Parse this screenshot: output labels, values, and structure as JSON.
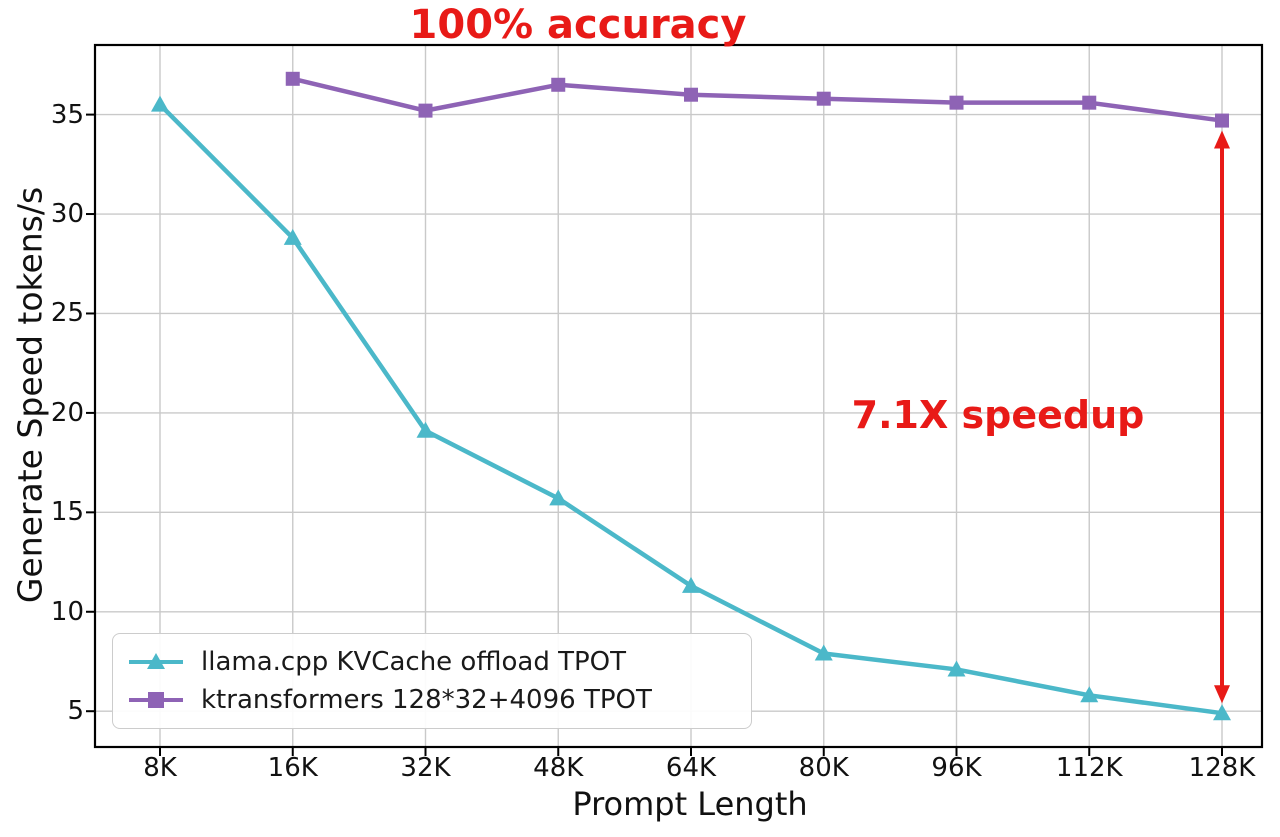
{
  "annotations": {
    "accuracy": "100% accuracy",
    "speedup": "7.1X speedup",
    "annotation_color": "#e81a17"
  },
  "chart_data": {
    "type": "line",
    "title": "",
    "xlabel": "Prompt Length",
    "ylabel": "Generate Speed tokens/s",
    "categories": [
      "8K",
      "16K",
      "32K",
      "48K",
      "64K",
      "80K",
      "96K",
      "112K",
      "128K"
    ],
    "yticks": [
      5,
      10,
      15,
      20,
      25,
      30,
      35
    ],
    "ylim": [
      3.2,
      38.5
    ],
    "grid": true,
    "grid_color": "#c9c9c9",
    "legend_position": "lower left",
    "series": [
      {
        "name": "llama.cpp KVCache offload TPOT",
        "color": "#4bb8c9",
        "marker": "triangle",
        "values": [
          35.5,
          28.8,
          19.1,
          15.7,
          11.3,
          7.9,
          7.1,
          5.8,
          4.9
        ]
      },
      {
        "name": "ktransformers 128*32+4096 TPOT",
        "color": "#8e63b5",
        "marker": "square",
        "values": [
          null,
          36.8,
          35.2,
          36.5,
          36.0,
          35.8,
          35.6,
          35.6,
          34.7
        ]
      }
    ],
    "arrow": {
      "x_category": "128K",
      "from": 34.2,
      "to": 5.4,
      "color": "#e81a17",
      "label": "7.1X speedup"
    }
  }
}
